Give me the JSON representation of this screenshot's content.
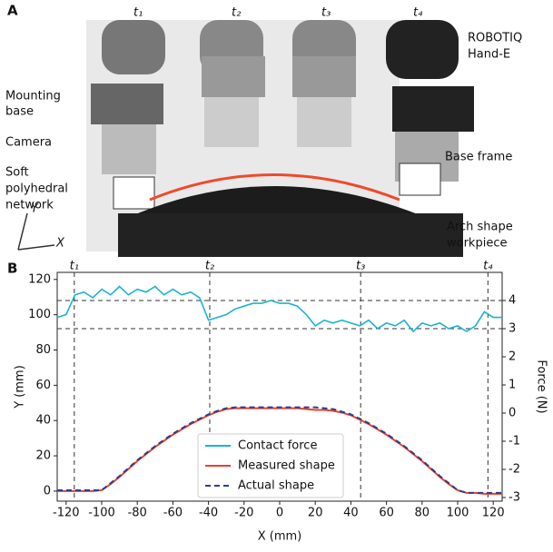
{
  "panel_a": {
    "label": "A",
    "time_labels": [
      "t₁",
      "t₂",
      "t₃",
      "t₄"
    ],
    "gripper_label": [
      "ROBOTIQ",
      "Hand-E"
    ],
    "mounting_label": [
      "Mounting",
      "base"
    ],
    "camera_label": "Camera",
    "network_label": [
      "Soft",
      "polyhedral",
      "network"
    ],
    "frame_label": "Base frame",
    "workpiece_label": [
      "Arch shape",
      "workpiece"
    ],
    "axis_y": "Y",
    "axis_x": "X"
  },
  "chart_data": {
    "type": "line",
    "panel_label": "B",
    "xlabel": "X (mm)",
    "ylabel": "Y (mm)",
    "y2label": "Force (N)",
    "xlim": [
      -125,
      125
    ],
    "xticks": [
      -120,
      -100,
      -80,
      -60,
      -40,
      -20,
      0,
      20,
      40,
      60,
      80,
      100,
      120
    ],
    "ylim": [
      -5.7,
      124
    ],
    "yticks": [
      0,
      20,
      40,
      60,
      80,
      100,
      120
    ],
    "y2lim": [
      -3.13,
      5.0
    ],
    "y2ticks": [
      -3,
      -2,
      -1,
      0,
      1,
      2,
      3,
      4
    ],
    "reference_lines": {
      "x": [
        {
          "value": -115.4,
          "label": "t₁"
        },
        {
          "value": -39.3,
          "label": "t₂"
        },
        {
          "value": 45.5,
          "label": "t₃"
        },
        {
          "value": 117,
          "label": "t₄"
        }
      ],
      "y2": [
        3,
        4
      ]
    },
    "x": [
      -125,
      -120,
      -115,
      -110,
      -105,
      -100,
      -95,
      -90,
      -85,
      -80,
      -75,
      -70,
      -65,
      -60,
      -55,
      -50,
      -45,
      -40,
      -35,
      -30,
      -25,
      -20,
      -15,
      -10,
      -5,
      0,
      5,
      10,
      15,
      20,
      25,
      30,
      35,
      40,
      45,
      50,
      55,
      60,
      65,
      70,
      75,
      80,
      85,
      90,
      95,
      100,
      105,
      110,
      115,
      120,
      125
    ],
    "series": [
      {
        "name": "Contact force",
        "color": "#1ab4cf",
        "axis": "y2",
        "dashed": false,
        "values": [
          3.4,
          3.5,
          4.2,
          4.3,
          4.1,
          4.4,
          4.2,
          4.5,
          4.2,
          4.4,
          4.3,
          4.5,
          4.2,
          4.4,
          4.2,
          4.3,
          4.1,
          3.3,
          3.4,
          3.5,
          3.7,
          3.8,
          3.9,
          3.9,
          4.0,
          3.9,
          3.9,
          3.8,
          3.5,
          3.1,
          3.3,
          3.2,
          3.3,
          3.2,
          3.1,
          3.3,
          3.0,
          3.2,
          3.1,
          3.3,
          2.9,
          3.2,
          3.1,
          3.2,
          3.0,
          3.1,
          2.9,
          3.1,
          3.6,
          3.4,
          3.4
        ]
      },
      {
        "name": "Measured shape",
        "color": "#e8402d",
        "dashed": false,
        "values": [
          0,
          0,
          0,
          0,
          0,
          0.5,
          4,
          8,
          12.5,
          17,
          21,
          25,
          28.5,
          32,
          35,
          38,
          40.5,
          43,
          45,
          46.5,
          47,
          47,
          47,
          47,
          47,
          47,
          47,
          47,
          46.5,
          46,
          46,
          45.5,
          44.5,
          43,
          40.5,
          38,
          35,
          32,
          28.5,
          25,
          21,
          17,
          12.5,
          8,
          4,
          0.5,
          -1,
          -1,
          -1.5,
          -1.5,
          -1.5
        ]
      },
      {
        "name": "Actual shape",
        "color": "#2b3f8c",
        "dashed": true,
        "values": [
          0.5,
          0.5,
          0.5,
          0.5,
          0.5,
          0.5,
          4.5,
          8.5,
          13,
          17.5,
          21.5,
          25.5,
          29,
          32.5,
          35.5,
          38.5,
          41,
          43.5,
          45.5,
          47,
          47.5,
          47.5,
          47.5,
          47.5,
          47.5,
          47.5,
          47.5,
          47.5,
          47.5,
          47.5,
          47,
          46.5,
          45,
          43.5,
          41,
          38.5,
          35.5,
          32.5,
          29,
          25.5,
          21.5,
          17.5,
          13,
          8.5,
          4.5,
          0.5,
          -1,
          -1,
          -1,
          -1,
          -1
        ]
      }
    ]
  }
}
